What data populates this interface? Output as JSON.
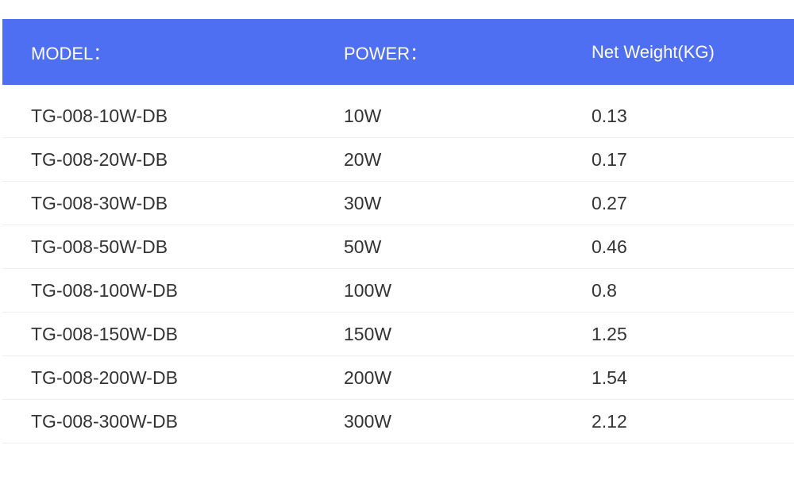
{
  "table": {
    "header": [
      "MODEL：",
      "POWER：",
      "Net Weight(KG)"
    ],
    "rows": [
      [
        "TG-008-10W-DB",
        "10W",
        "0.13"
      ],
      [
        "TG-008-20W-DB",
        "20W",
        "0.17"
      ],
      [
        "TG-008-30W-DB",
        "30W",
        "0.27"
      ],
      [
        "TG-008-50W-DB",
        "50W",
        "0.46"
      ],
      [
        "TG-008-100W-DB",
        "100W",
        "0.8"
      ],
      [
        "TG-008-150W-DB",
        "150W",
        "1.25"
      ],
      [
        "TG-008-200W-DB",
        "200W",
        "1.54"
      ],
      [
        "TG-008-300W-DB",
        "300W",
        "2.12"
      ]
    ]
  }
}
